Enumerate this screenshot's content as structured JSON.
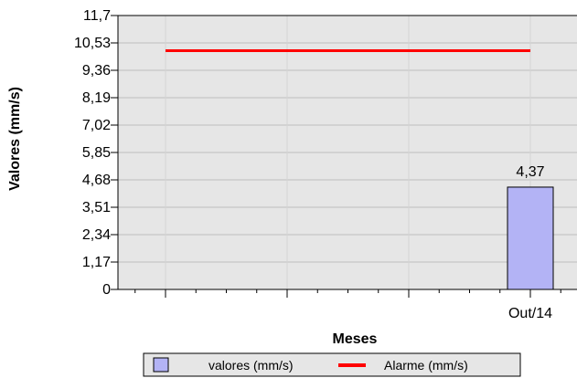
{
  "chart_data": {
    "type": "bar",
    "xlabel": "Meses",
    "ylabel": "Valores  (mm/s)",
    "ylim": [
      0,
      11.7
    ],
    "y_ticks": [
      "0",
      "1,17",
      "2,34",
      "3,51",
      "4,68",
      "5,85",
      "7,02",
      "8,19",
      "9,36",
      "10,53",
      "11,7"
    ],
    "categories": [
      "Out/14"
    ],
    "series": [
      {
        "name": "valores (mm/s)",
        "type": "bar",
        "values": [
          4.37
        ],
        "value_labels": [
          "4,37"
        ],
        "color": "#b3b3f5"
      },
      {
        "name": "Alarme (mm/s)",
        "type": "line",
        "value": 10.2,
        "color": "#ff0000"
      }
    ],
    "grid": true,
    "legend_position": "bottom",
    "plot_background": "#e6e6e6"
  }
}
